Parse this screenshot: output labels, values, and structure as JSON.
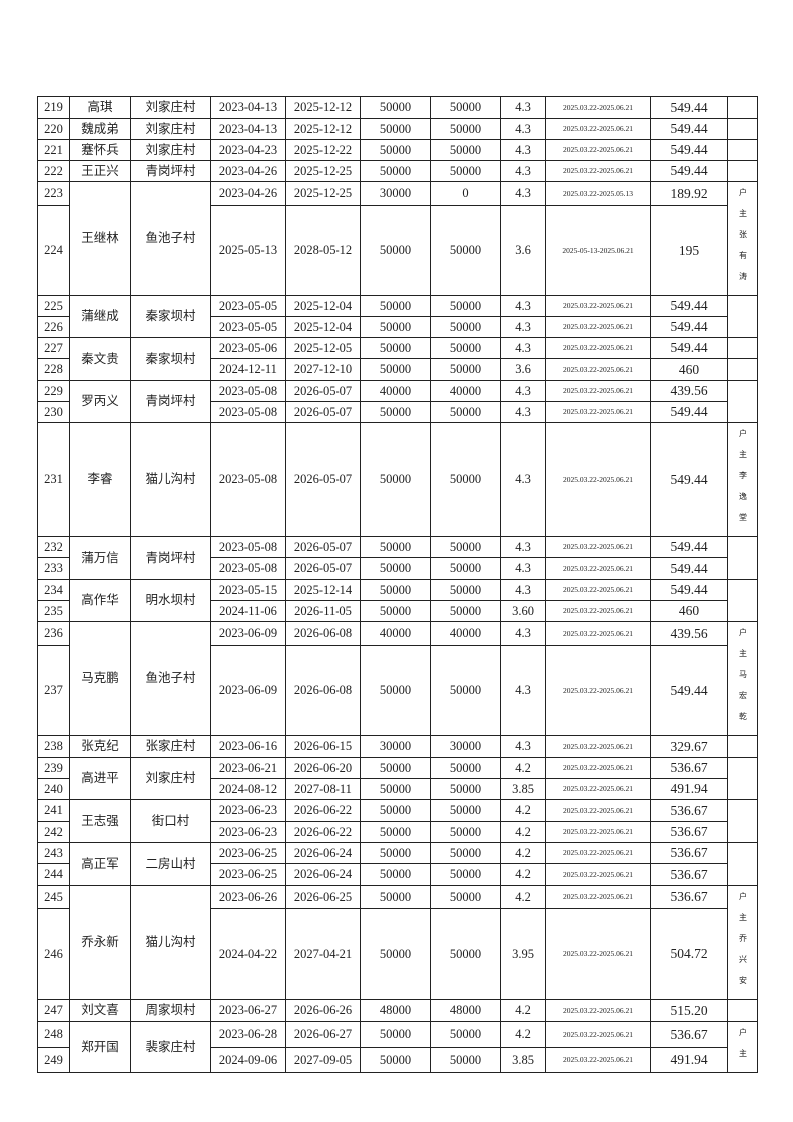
{
  "entries": [
    {
      "no": "219",
      "start": "2023-04-13",
      "end": "2025-12-12",
      "amount": "50000",
      "balance": "50000",
      "rate": "4.3",
      "period": "2025.03.22-2025.06.21",
      "interest": "549.44"
    },
    {
      "no": "220",
      "start": "2023-04-13",
      "end": "2025-12-12",
      "amount": "50000",
      "balance": "50000",
      "rate": "4.3",
      "period": "2025.03.22-2025.06.21",
      "interest": "549.44"
    },
    {
      "no": "221",
      "start": "2023-04-23",
      "end": "2025-12-22",
      "amount": "50000",
      "balance": "50000",
      "rate": "4.3",
      "period": "2025.03.22-2025.06.21",
      "interest": "549.44"
    },
    {
      "no": "222",
      "start": "2023-04-26",
      "end": "2025-12-25",
      "amount": "50000",
      "balance": "50000",
      "rate": "4.3",
      "period": "2025.03.22-2025.06.21",
      "interest": "549.44"
    },
    {
      "no": "223",
      "start": "2023-04-26",
      "end": "2025-12-25",
      "amount": "30000",
      "balance": "0",
      "rate": "4.3",
      "period": "2025.03.22-2025.05.13",
      "interest": "189.92"
    },
    {
      "no": "224",
      "start": "2025-05-13",
      "end": "2028-05-12",
      "amount": "50000",
      "balance": "50000",
      "rate": "3.6",
      "period": "2025-05-13-2025.06.21",
      "interest": "195"
    },
    {
      "no": "225",
      "start": "2023-05-05",
      "end": "2025-12-04",
      "amount": "50000",
      "balance": "50000",
      "rate": "4.3",
      "period": "2025.03.22-2025.06.21",
      "interest": "549.44"
    },
    {
      "no": "226",
      "start": "2023-05-05",
      "end": "2025-12-04",
      "amount": "50000",
      "balance": "50000",
      "rate": "4.3",
      "period": "2025.03.22-2025.06.21",
      "interest": "549.44"
    },
    {
      "no": "227",
      "start": "2023-05-06",
      "end": "2025-12-05",
      "amount": "50000",
      "balance": "50000",
      "rate": "4.3",
      "period": "2025.03.22-2025.06.21",
      "interest": "549.44"
    },
    {
      "no": "228",
      "start": "2024-12-11",
      "end": "2027-12-10",
      "amount": "50000",
      "balance": "50000",
      "rate": "3.6",
      "period": "2025.03.22-2025.06.21",
      "interest": "460"
    },
    {
      "no": "229",
      "start": "2023-05-08",
      "end": "2026-05-07",
      "amount": "40000",
      "balance": "40000",
      "rate": "4.3",
      "period": "2025.03.22-2025.06.21",
      "interest": "439.56"
    },
    {
      "no": "230",
      "start": "2023-05-08",
      "end": "2026-05-07",
      "amount": "50000",
      "balance": "50000",
      "rate": "4.3",
      "period": "2025.03.22-2025.06.21",
      "interest": "549.44"
    },
    {
      "no": "231",
      "start": "2023-05-08",
      "end": "2026-05-07",
      "amount": "50000",
      "balance": "50000",
      "rate": "4.3",
      "period": "2025.03.22-2025.06.21",
      "interest": "549.44"
    },
    {
      "no": "232",
      "start": "2023-05-08",
      "end": "2026-05-07",
      "amount": "50000",
      "balance": "50000",
      "rate": "4.3",
      "period": "2025.03.22-2025.06.21",
      "interest": "549.44"
    },
    {
      "no": "233",
      "start": "2023-05-08",
      "end": "2026-05-07",
      "amount": "50000",
      "balance": "50000",
      "rate": "4.3",
      "period": "2025.03.22-2025.06.21",
      "interest": "549.44"
    },
    {
      "no": "234",
      "start": "2023-05-15",
      "end": "2025-12-14",
      "amount": "50000",
      "balance": "50000",
      "rate": "4.3",
      "period": "2025.03.22-2025.06.21",
      "interest": "549.44"
    },
    {
      "no": "235",
      "start": "2024-11-06",
      "end": "2026-11-05",
      "amount": "50000",
      "balance": "50000",
      "rate": "3.60",
      "period": "2025.03.22-2025.06.21",
      "interest": "460"
    },
    {
      "no": "236",
      "start": "2023-06-09",
      "end": "2026-06-08",
      "amount": "40000",
      "balance": "40000",
      "rate": "4.3",
      "period": "2025.03.22-2025.06.21",
      "interest": "439.56"
    },
    {
      "no": "237",
      "start": "2023-06-09",
      "end": "2026-06-08",
      "amount": "50000",
      "balance": "50000",
      "rate": "4.3",
      "period": "2025.03.22-2025.06.21",
      "interest": "549.44"
    },
    {
      "no": "238",
      "start": "2023-06-16",
      "end": "2026-06-15",
      "amount": "30000",
      "balance": "30000",
      "rate": "4.3",
      "period": "2025.03.22-2025.06.21",
      "interest": "329.67"
    },
    {
      "no": "239",
      "start": "2023-06-21",
      "end": "2026-06-20",
      "amount": "50000",
      "balance": "50000",
      "rate": "4.2",
      "period": "2025.03.22-2025.06.21",
      "interest": "536.67"
    },
    {
      "no": "240",
      "start": "2024-08-12",
      "end": "2027-08-11",
      "amount": "50000",
      "balance": "50000",
      "rate": "3.85",
      "period": "2025.03.22-2025.06.21",
      "interest": "491.94"
    },
    {
      "no": "241",
      "start": "2023-06-23",
      "end": "2026-06-22",
      "amount": "50000",
      "balance": "50000",
      "rate": "4.2",
      "period": "2025.03.22-2025.06.21",
      "interest": "536.67"
    },
    {
      "no": "242",
      "start": "2023-06-23",
      "end": "2026-06-22",
      "amount": "50000",
      "balance": "50000",
      "rate": "4.2",
      "period": "2025.03.22-2025.06.21",
      "interest": "536.67"
    },
    {
      "no": "243",
      "start": "2023-06-25",
      "end": "2026-06-24",
      "amount": "50000",
      "balance": "50000",
      "rate": "4.2",
      "period": "2025.03.22-2025.06.21",
      "interest": "536.67"
    },
    {
      "no": "244",
      "start": "2023-06-25",
      "end": "2026-06-24",
      "amount": "50000",
      "balance": "50000",
      "rate": "4.2",
      "period": "2025.03.22-2025.06.21",
      "interest": "536.67"
    },
    {
      "no": "245",
      "start": "2023-06-26",
      "end": "2026-06-25",
      "amount": "50000",
      "balance": "50000",
      "rate": "4.2",
      "period": "2025.03.22-2025.06.21",
      "interest": "536.67"
    },
    {
      "no": "246",
      "start": "2024-04-22",
      "end": "2027-04-21",
      "amount": "50000",
      "balance": "50000",
      "rate": "3.95",
      "period": "2025.03.22-2025.06.21",
      "interest": "504.72"
    },
    {
      "no": "247",
      "start": "2023-06-27",
      "end": "2026-06-26",
      "amount": "48000",
      "balance": "48000",
      "rate": "4.2",
      "period": "2025.03.22-2025.06.21",
      "interest": "515.20"
    },
    {
      "no": "248",
      "start": "2023-06-28",
      "end": "2026-06-27",
      "amount": "50000",
      "balance": "50000",
      "rate": "4.2",
      "period": "2025.03.22-2025.06.21",
      "interest": "536.67"
    },
    {
      "no": "249",
      "start": "2024-09-06",
      "end": "2027-09-05",
      "amount": "50000",
      "balance": "50000",
      "rate": "3.85",
      "period": "2025.03.22-2025.06.21",
      "interest": "491.94"
    }
  ],
  "borrowers": [
    {
      "name": "高琪",
      "village": "刘家庄村",
      "rows": 1
    },
    {
      "name": "魏成弟",
      "village": "刘家庄村",
      "rows": 1
    },
    {
      "name": "蹇怀兵",
      "village": "刘家庄村",
      "rows": 1
    },
    {
      "name": "王正兴",
      "village": "青岗坪村",
      "rows": 1
    },
    {
      "name": "王继林",
      "village": "鱼池子村",
      "rows": 2
    },
    {
      "name": "蒲继成",
      "village": "秦家坝村",
      "rows": 2
    },
    {
      "name": "秦文贵",
      "village": "秦家坝村",
      "rows": 2
    },
    {
      "name": "罗丙义",
      "village": "青岗坪村",
      "rows": 2
    },
    {
      "name": "李睿",
      "village": "猫儿沟村",
      "rows": 1
    },
    {
      "name": "蒲万信",
      "village": "青岗坪村",
      "rows": 2
    },
    {
      "name": "高作华",
      "village": "明水坝村",
      "rows": 2
    },
    {
      "name": "马克鹏",
      "village": "鱼池子村",
      "rows": 2
    },
    {
      "name": "张克纪",
      "village": "张家庄村",
      "rows": 1
    },
    {
      "name": "高进平",
      "village": "刘家庄村",
      "rows": 2
    },
    {
      "name": "王志强",
      "village": "街口村",
      "rows": 2
    },
    {
      "name": "高正军",
      "village": "二房山村",
      "rows": 2
    },
    {
      "name": "乔永新",
      "village": "猫儿沟村",
      "rows": 2
    },
    {
      "name": "刘文喜",
      "village": "周家坝村",
      "rows": 1
    },
    {
      "name": "郑开国",
      "village": "裴家庄村",
      "rows": 2
    }
  ],
  "remarks": [
    {
      "text": "",
      "rows": 1
    },
    {
      "text": "",
      "rows": 1
    },
    {
      "text": "",
      "rows": 1
    },
    {
      "text": "",
      "rows": 1
    },
    {
      "text": "户主张有涛",
      "rows": 2
    },
    {
      "text": "",
      "rows": 2
    },
    {
      "text": "",
      "rows": 1
    },
    {
      "text": "",
      "rows": 1
    },
    {
      "text": "",
      "rows": 2
    },
    {
      "text": "户主李逸堂",
      "rows": 1
    },
    {
      "text": "",
      "rows": 2
    },
    {
      "text": "",
      "rows": 2
    },
    {
      "text": "户主马宏乾",
      "rows": 2
    },
    {
      "text": "",
      "rows": 1
    },
    {
      "text": "",
      "rows": 2
    },
    {
      "text": "",
      "rows": 2
    },
    {
      "text": "",
      "rows": 2
    },
    {
      "text": "户主乔兴安",
      "rows": 2
    },
    {
      "text": "",
      "rows": 1
    },
    {
      "text": "户主",
      "rows": 2
    }
  ]
}
